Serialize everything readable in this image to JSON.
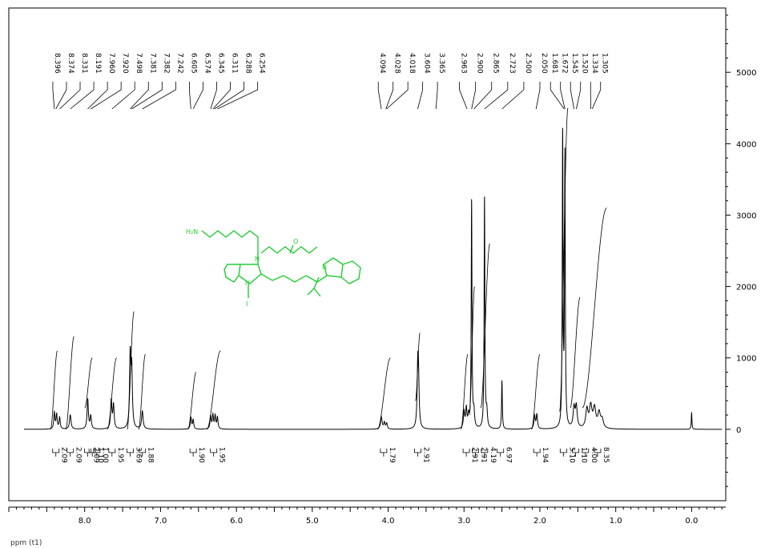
{
  "chart_data": {
    "type": "line",
    "title": "",
    "xlabel": "ppm (t1)",
    "ylabel": "",
    "xlim": [
      9.0,
      -0.45
    ],
    "ylim": [
      -1000,
      5900
    ],
    "x_ticks": [
      {
        "value": 8.0,
        "label": "8.0"
      },
      {
        "value": 7.0,
        "label": "7.0"
      },
      {
        "value": 6.0,
        "label": "6.0"
      },
      {
        "value": 5.0,
        "label": "5.0"
      },
      {
        "value": 4.0,
        "label": "4.0"
      },
      {
        "value": 3.0,
        "label": "3.0"
      },
      {
        "value": 2.0,
        "label": "2.0"
      },
      {
        "value": 1.0,
        "label": "1.0"
      },
      {
        "value": 0.0,
        "label": "0.0"
      }
    ],
    "y_ticks": [
      {
        "value": 5000,
        "label": "5000"
      },
      {
        "value": 4000,
        "label": "4000"
      },
      {
        "value": 3000,
        "label": "3000"
      },
      {
        "value": 2000,
        "label": "2000"
      },
      {
        "value": 1000,
        "label": "1000"
      },
      {
        "value": 0,
        "label": "0"
      }
    ],
    "peak_labels": [
      {
        "label": "8.396",
        "tip": 8.4
      },
      {
        "label": "8.374",
        "tip": 8.38
      },
      {
        "label": "8.331",
        "tip": 8.33
      },
      {
        "label": "8.191",
        "tip": 8.19
      },
      {
        "label": "7.960",
        "tip": 7.96
      },
      {
        "label": "7.920",
        "tip": 7.92
      },
      {
        "label": "7.498",
        "tip": 7.64
      },
      {
        "label": "7.381",
        "tip": 7.4
      },
      {
        "label": "7.382",
        "tip": 7.38
      },
      {
        "label": "7.242",
        "tip": 7.24
      },
      {
        "label": "6.605",
        "tip": 6.6
      },
      {
        "label": "6.574",
        "tip": 6.57
      },
      {
        "label": "6.345",
        "tip": 6.34
      },
      {
        "label": "6.311",
        "tip": 6.31
      },
      {
        "label": "6.288",
        "tip": 6.29
      },
      {
        "label": "6.254",
        "tip": 6.25
      },
      {
        "label": "4.094",
        "tip": 4.09
      },
      {
        "label": "4.028",
        "tip": 4.03
      },
      {
        "label": "4.018",
        "tip": 4.02
      },
      {
        "label": "3.604",
        "tip": 3.61
      },
      {
        "label": "3.365",
        "tip": 3.37
      },
      {
        "label": "2.963",
        "tip": 2.96
      },
      {
        "label": "2.900",
        "tip": 2.9
      },
      {
        "label": "2.865",
        "tip": 2.87
      },
      {
        "label": "2.723",
        "tip": 2.73
      },
      {
        "label": "2.500",
        "tip": 2.5
      },
      {
        "label": "2.050",
        "tip": 2.05
      },
      {
        "label": "1.681",
        "tip": 1.68
      },
      {
        "label": "1.672",
        "tip": 1.67
      },
      {
        "label": "1.545",
        "tip": 1.55
      },
      {
        "label": "1.520",
        "tip": 1.52
      },
      {
        "label": "1.334",
        "tip": 1.33
      },
      {
        "label": "1.305",
        "tip": 1.31
      }
    ],
    "peaks": [
      {
        "ppm": 8.4,
        "height": 230,
        "width": 0.009
      },
      {
        "ppm": 8.37,
        "height": 200,
        "width": 0.009
      },
      {
        "ppm": 8.33,
        "height": 160,
        "width": 0.009
      },
      {
        "ppm": 8.19,
        "height": 200,
        "width": 0.012
      },
      {
        "ppm": 7.96,
        "height": 420,
        "width": 0.01
      },
      {
        "ppm": 7.92,
        "height": 180,
        "width": 0.01
      },
      {
        "ppm": 7.65,
        "height": 400,
        "width": 0.01
      },
      {
        "ppm": 7.62,
        "height": 330,
        "width": 0.01
      },
      {
        "ppm": 7.4,
        "height": 1000,
        "width": 0.01
      },
      {
        "ppm": 7.38,
        "height": 800,
        "width": 0.01
      },
      {
        "ppm": 7.24,
        "height": 250,
        "width": 0.012
      },
      {
        "ppm": 6.6,
        "height": 160,
        "width": 0.009
      },
      {
        "ppm": 6.57,
        "height": 130,
        "width": 0.009
      },
      {
        "ppm": 6.34,
        "height": 180,
        "width": 0.009
      },
      {
        "ppm": 6.31,
        "height": 190,
        "width": 0.009
      },
      {
        "ppm": 6.28,
        "height": 180,
        "width": 0.009
      },
      {
        "ppm": 6.25,
        "height": 160,
        "width": 0.009
      },
      {
        "ppm": 4.09,
        "height": 170,
        "width": 0.012
      },
      {
        "ppm": 4.05,
        "height": 90,
        "width": 0.01
      },
      {
        "ppm": 4.02,
        "height": 80,
        "width": 0.01
      },
      {
        "ppm": 3.61,
        "height": 760,
        "width": 0.01
      },
      {
        "ppm": 3.6,
        "height": 600,
        "width": 0.01
      },
      {
        "ppm": 3.0,
        "height": 230,
        "width": 0.01
      },
      {
        "ppm": 2.97,
        "height": 270,
        "width": 0.01
      },
      {
        "ppm": 2.94,
        "height": 160,
        "width": 0.01
      },
      {
        "ppm": 2.9,
        "height": 3200,
        "width": 0.006
      },
      {
        "ppm": 2.87,
        "height": 220,
        "width": 0.01
      },
      {
        "ppm": 2.73,
        "height": 3250,
        "width": 0.006
      },
      {
        "ppm": 2.7,
        "height": 230,
        "width": 0.01
      },
      {
        "ppm": 2.5,
        "height": 680,
        "width": 0.006
      },
      {
        "ppm": 2.07,
        "height": 180,
        "width": 0.01
      },
      {
        "ppm": 2.04,
        "height": 200,
        "width": 0.01
      },
      {
        "ppm": 1.7,
        "height": 4100,
        "width": 0.006
      },
      {
        "ppm": 1.67,
        "height": 3800,
        "width": 0.006
      },
      {
        "ppm": 1.55,
        "height": 280,
        "width": 0.014
      },
      {
        "ppm": 1.52,
        "height": 300,
        "width": 0.014
      },
      {
        "ppm": 1.38,
        "height": 260,
        "width": 0.018
      },
      {
        "ppm": 1.33,
        "height": 300,
        "width": 0.02
      },
      {
        "ppm": 1.28,
        "height": 270,
        "width": 0.02
      },
      {
        "ppm": 1.22,
        "height": 210,
        "width": 0.02
      },
      {
        "ppm": 1.18,
        "height": 120,
        "width": 0.02
      },
      {
        "ppm": 0.0,
        "height": 240,
        "width": 0.005
      }
    ],
    "integral_curves": [
      {
        "from": 8.45,
        "to": 8.36,
        "low": 0,
        "high": 1100
      },
      {
        "from": 8.25,
        "to": 8.14,
        "low": 0,
        "high": 1300
      },
      {
        "from": 8.0,
        "to": 7.9,
        "low": 300,
        "high": 1000
      },
      {
        "from": 7.7,
        "to": 7.58,
        "low": 0,
        "high": 1000
      },
      {
        "from": 7.44,
        "to": 7.35,
        "low": 0,
        "high": 1650
      },
      {
        "from": 7.29,
        "to": 7.2,
        "low": 0,
        "high": 1050
      },
      {
        "from": 6.64,
        "to": 6.53,
        "low": 0,
        "high": 800
      },
      {
        "from": 6.39,
        "to": 6.21,
        "low": 0,
        "high": 1100
      },
      {
        "from": 4.14,
        "to": 3.97,
        "low": 0,
        "high": 1000
      },
      {
        "from": 3.64,
        "to": 3.58,
        "low": 400,
        "high": 1350
      },
      {
        "from": 3.04,
        "to": 2.95,
        "low": 0,
        "high": 1050
      },
      {
        "from": 2.93,
        "to": 2.86,
        "low": 200,
        "high": 2000
      },
      {
        "from": 2.78,
        "to": 2.66,
        "low": 300,
        "high": 2600
      },
      {
        "from": 2.11,
        "to": 2.0,
        "low": 0,
        "high": 1050
      },
      {
        "from": 1.74,
        "to": 1.63,
        "low": 250,
        "high": 4500
      },
      {
        "from": 1.6,
        "to": 1.47,
        "low": 300,
        "high": 1850
      },
      {
        "from": 1.44,
        "to": 1.12,
        "low": 300,
        "high": 3100
      }
    ],
    "integrals": [
      {
        "ppm": 8.38,
        "label": "2.09"
      },
      {
        "ppm": 8.19,
        "label": "2.09"
      },
      {
        "ppm": 7.96,
        "label": "2.09"
      },
      {
        "ppm": 7.9,
        "label": "1.10"
      },
      {
        "ppm": 7.84,
        "label": "1.00"
      },
      {
        "ppm": 7.64,
        "label": "1.95"
      },
      {
        "ppm": 7.4,
        "label": "3.69"
      },
      {
        "ppm": 7.24,
        "label": "1.88"
      },
      {
        "ppm": 6.57,
        "label": "1.90"
      },
      {
        "ppm": 6.3,
        "label": "1.95"
      },
      {
        "ppm": 4.06,
        "label": "1.79"
      },
      {
        "ppm": 3.61,
        "label": "2.91"
      },
      {
        "ppm": 2.97,
        "label": "2.91"
      },
      {
        "ppm": 2.85,
        "label": "2.91"
      },
      {
        "ppm": 2.73,
        "label": "4.19"
      },
      {
        "ppm": 2.52,
        "label": "6.97"
      },
      {
        "ppm": 2.04,
        "label": "1.94"
      },
      {
        "ppm": 1.69,
        "label": "5.10"
      },
      {
        "ppm": 1.53,
        "label": "1.10"
      },
      {
        "ppm": 1.4,
        "label": "4.00"
      },
      {
        "ppm": 1.24,
        "label": "8.35"
      }
    ],
    "grid": false,
    "legend": "none"
  },
  "structure": {
    "color": "#22cc33",
    "labels": {
      "amine": "H₂N",
      "n1": "N",
      "carbonyl": "O",
      "n2": "N",
      "n3": "N",
      "iodide": "I"
    }
  }
}
